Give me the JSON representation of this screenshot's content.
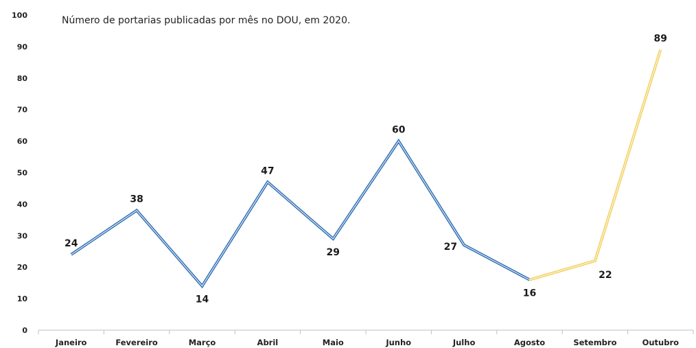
{
  "chart_data": {
    "type": "line",
    "title": "Número de portarias publicadas por mês no DOU, em 2020.",
    "xlabel": "",
    "ylabel": "",
    "categories": [
      "Janeiro",
      "Fevereiro",
      "Março",
      "Abril",
      "Maio",
      "Junho",
      "Julho",
      "Agosto",
      "Setembro",
      "Outubro"
    ],
    "values": [
      24,
      38,
      14,
      47,
      29,
      60,
      27,
      16,
      22,
      89
    ],
    "data_labels": [
      "24",
      "38",
      "14",
      "47",
      "29",
      "60",
      "27",
      "16",
      "22",
      "89"
    ],
    "label_positions": [
      "above",
      "above",
      "below",
      "above",
      "below",
      "above",
      "left",
      "below",
      "below-right",
      "above"
    ],
    "yticks": [
      "0",
      "10",
      "20",
      "30",
      "40",
      "50",
      "60",
      "70",
      "80",
      "90",
      "100"
    ],
    "ylim": [
      0,
      100
    ],
    "grid": false,
    "legend": "none",
    "segments": [
      {
        "from": "Janeiro",
        "to": "Agosto",
        "color": "#2e6db4"
      },
      {
        "from": "Agosto",
        "to": "Outubro",
        "color": "#f2cf5b"
      }
    ]
  }
}
